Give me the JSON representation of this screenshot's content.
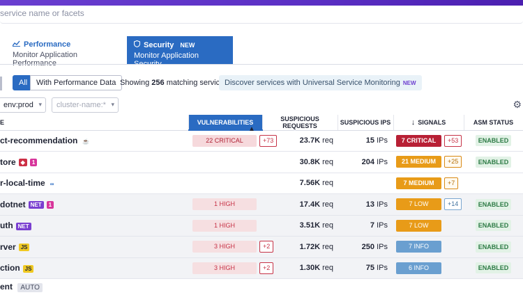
{
  "search": {
    "placeholder": "service name or facets"
  },
  "tabs": [
    {
      "title": "Performance",
      "subtitle": "Monitor Application Performance",
      "badge": ""
    },
    {
      "title": "Security",
      "subtitle": "Monitor Application Security",
      "badge": "NEW"
    }
  ],
  "filters": {
    "all_label": "All",
    "perf_label": "With Performance Data",
    "showing_prefix": "Showing",
    "showing_count": "256",
    "showing_suffix": "matching services",
    "discover_text": "Discover services with Universal Service Monitoring",
    "discover_badge": "NEW",
    "env_value": "env:prod",
    "cluster_placeholder": "cluster-name:*"
  },
  "columns": {
    "name": "E",
    "vulnerabilities": "VULNERABILITIES",
    "suspicious_requests": "SUSPICIOUS REQUESTS",
    "suspicious_ips": "SUSPICIOUS IPS",
    "signals": "SIGNALS",
    "asm_status": "ASM STATUS"
  },
  "rows": [
    {
      "name": "ct-recommendation",
      "tags": [
        "coffee"
      ],
      "vuln": "22 CRITICAL",
      "vuln_delta": "+73",
      "req": "23.7K",
      "req_unit": "req",
      "ips": "15",
      "ips_unit": "IPs",
      "signal": "7 CRITICAL",
      "signal_type": "critical",
      "signal_delta": "+53",
      "asm": "ENABLED"
    },
    {
      "name": "tore",
      "tags": [
        "ruby",
        "pink-1"
      ],
      "vuln": "",
      "vuln_delta": "",
      "req": "30.8K",
      "req_unit": "req",
      "ips": "204",
      "ips_unit": "IPs",
      "signal": "21 MEDIUM",
      "signal_type": "medium",
      "signal_delta": "+25",
      "asm": "ENABLED"
    },
    {
      "name": "r-local-time",
      "tags": [
        "inf"
      ],
      "vuln": "",
      "vuln_delta": "",
      "req": "7.56K",
      "req_unit": "req",
      "ips": "",
      "ips_unit": "",
      "signal": "7 MEDIUM",
      "signal_type": "medium",
      "signal_delta": "+7",
      "asm": ""
    },
    {
      "name": "dotnet",
      "tags": [
        "net",
        "pink-1"
      ],
      "vuln": "1 HIGH",
      "vuln_delta": "",
      "req": "17.4K",
      "req_unit": "req",
      "ips": "13",
      "ips_unit": "IPs",
      "signal": "7 LOW",
      "signal_type": "low",
      "signal_delta": "+14",
      "asm": "ENABLED"
    },
    {
      "name": "uth",
      "tags": [
        "net"
      ],
      "vuln": "1 HIGH",
      "vuln_delta": "",
      "req": "3.51K",
      "req_unit": "req",
      "ips": "7",
      "ips_unit": "IPs",
      "signal": "7 LOW",
      "signal_type": "low",
      "signal_delta": "",
      "asm": "ENABLED"
    },
    {
      "name": "rver",
      "tags": [
        "js"
      ],
      "vuln": "3 HIGH",
      "vuln_delta": "+2",
      "req": "1.72K",
      "req_unit": "req",
      "ips": "250",
      "ips_unit": "IPs",
      "signal": "7 INFO",
      "signal_type": "info",
      "signal_delta": "",
      "asm": "ENABLED"
    },
    {
      "name": "ction",
      "tags": [
        "js"
      ],
      "vuln": "3 HIGH",
      "vuln_delta": "+2",
      "req": "1.30K",
      "req_unit": "req",
      "ips": "75",
      "ips_unit": "IPs",
      "signal": "6 INFO",
      "signal_type": "info",
      "signal_delta": "",
      "asm": "ENABLED"
    }
  ],
  "last_row": {
    "name": "ent",
    "badge": "AUTO"
  },
  "tag_labels": {
    "net": "NET",
    "js": "JS",
    "pink-1": "1",
    "coffee": "☕",
    "ruby": "◆",
    "inf": "∞"
  },
  "colors": {
    "accent": "#2a6bc2",
    "critical": "#b82035",
    "medium": "#e89b18",
    "info": "#6a9fd0",
    "enabled_bg": "#e2f2e6"
  }
}
